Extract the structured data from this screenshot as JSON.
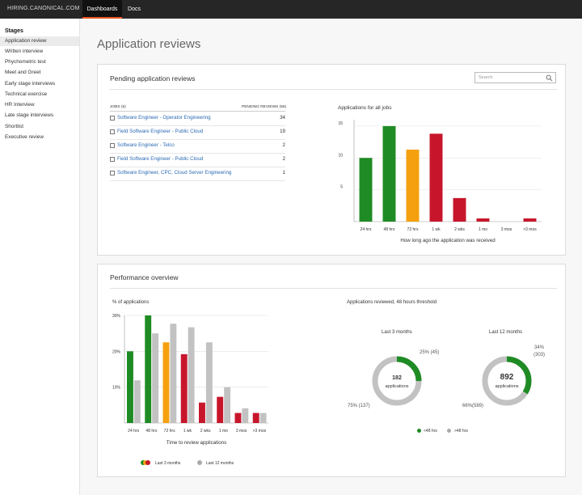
{
  "header": {
    "brand": "HIRING.CANONICAL.COM",
    "nav": [
      {
        "label": "Dashboards"
      },
      {
        "label": "Docs"
      }
    ]
  },
  "sidebar": {
    "title": "Stages",
    "items": [
      {
        "label": "Application review"
      },
      {
        "label": "Written interview"
      },
      {
        "label": "Phychometric test"
      },
      {
        "label": "Meet and Greet"
      },
      {
        "label": "Early stage interviews"
      },
      {
        "label": "Technical exercise"
      },
      {
        "label": "HR Interview"
      },
      {
        "label": "Late stage interviews"
      },
      {
        "label": "Shortlist"
      },
      {
        "label": "Executive review"
      }
    ]
  },
  "page_title": "Application reviews",
  "pending": {
    "title": "Pending application reviews",
    "search_placeholder": "Search",
    "col_jobs": "JOBS (5)",
    "col_pending": "PENDING REVIEWS (56)",
    "jobs": [
      {
        "title": "Software Engineer - Operator Engineering",
        "count": "34"
      },
      {
        "title": "Field Software Engineer - Public Cloud",
        "count": "19"
      },
      {
        "title": "Software Engineer - Telco",
        "count": "2"
      },
      {
        "title": "Field Software Engineer - Public Cloud",
        "count": "2"
      },
      {
        "title": "Software Engineer, CPC, Cloud Server Engineering",
        "count": "1"
      }
    ]
  },
  "performance": {
    "title": "Performance overview",
    "donut_title": "Applications reviewed, 48 hours threshold",
    "donuts": [
      {
        "period": "Last 3 months",
        "total": "182",
        "unit": "applications",
        "within_label": "25% (45)",
        "beyond_label": "75% (137)",
        "within_fraction": 0.25
      },
      {
        "period": "Last 12 months",
        "total": "892",
        "unit": "applications",
        "within_label": "34%\n(303)",
        "beyond_label": "66%(589)",
        "within_fraction": 0.34
      }
    ],
    "donut_legend": [
      "<48 hrs",
      ">48 hrs"
    ],
    "bar_legend": [
      "Last 3 months",
      "Last 12 months"
    ]
  },
  "colors": {
    "green": "#1f8b24",
    "orange": "#f5a00f",
    "red": "#c7162b",
    "grey": "#c2c2c2",
    "link": "#2c6bb4"
  },
  "chart_data": [
    {
      "type": "bar",
      "title": "Applications for all jobs",
      "xlabel": "How long ago the application was received",
      "ylabel": "",
      "categories": [
        "24 hrs",
        "48 hrs",
        "72 hrs",
        "1 wk",
        "2 wks",
        "1 mo",
        "3 mos",
        ">3 mos"
      ],
      "values": [
        10,
        15,
        11.3,
        13.8,
        3.7,
        0.5,
        0,
        0.5
      ],
      "bar_colors": [
        "green",
        "green",
        "orange",
        "red",
        "red",
        "red",
        "red",
        "red"
      ],
      "yticks": [
        "5",
        "10",
        "15"
      ],
      "ylim": [
        0,
        16
      ]
    },
    {
      "type": "bar",
      "title": "% of applications",
      "xlabel": "Time to review applications",
      "ylabel": "",
      "categories": [
        "24 hrs",
        "48 hrs",
        "72 hrs",
        "1 wk",
        "2 wks",
        "1 mo",
        "3 mos",
        ">3 mos"
      ],
      "yticks": [
        "10%",
        "20%",
        "30%"
      ],
      "ylim": [
        0,
        30
      ],
      "series": [
        {
          "name": "Last 3 months",
          "values": [
            20,
            30,
            22.5,
            19.2,
            5.7,
            7.3,
            2.8,
            2.8
          ],
          "bar_colors": [
            "green",
            "green",
            "orange",
            "red",
            "red",
            "red",
            "red",
            "red"
          ]
        },
        {
          "name": "Last 12 months",
          "values": [
            11.9,
            25,
            27.7,
            26.7,
            22.5,
            10,
            4.1,
            2.8
          ],
          "bar_colors": [
            "grey",
            "grey",
            "grey",
            "grey",
            "grey",
            "grey",
            "grey",
            "grey"
          ]
        }
      ]
    },
    {
      "type": "pie",
      "title": "Last 3 months",
      "categories": [
        "<48 hrs",
        ">48 hrs"
      ],
      "values": [
        45,
        137
      ]
    },
    {
      "type": "pie",
      "title": "Last 12 months",
      "categories": [
        "<48 hrs",
        ">48 hrs"
      ],
      "values": [
        303,
        589
      ]
    }
  ]
}
